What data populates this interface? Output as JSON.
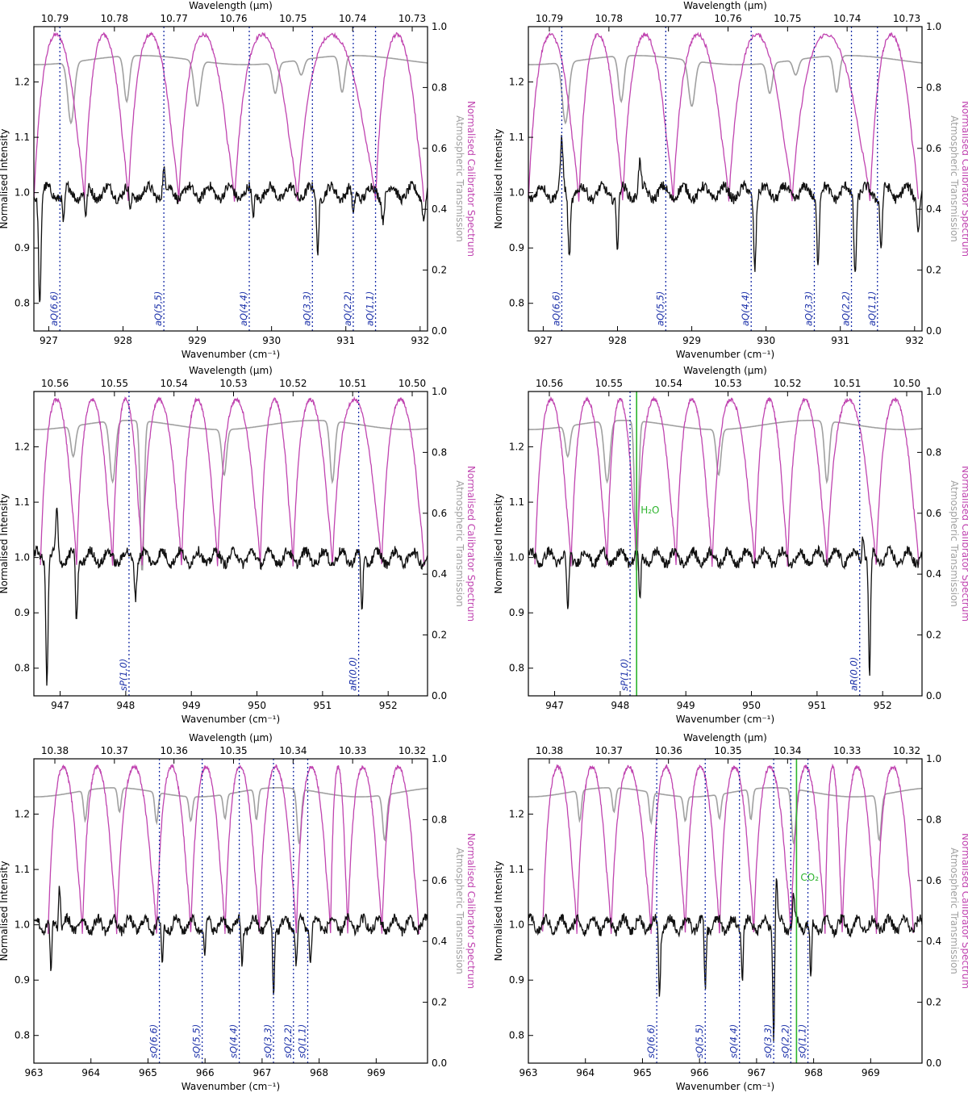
{
  "figure": {
    "type": "line",
    "axis_labels": {
      "x_bottom": "Wavenumber (cm⁻¹)",
      "x_top": "Wavelength (μm)",
      "y_left": "Normalised Intensity",
      "y_right_1": "Normalised Calibrator Spectrum",
      "y_right_2": "Atmospheric Transmission"
    },
    "colors": {
      "target": "#111111",
      "calibrator": "#c044b0",
      "atmosphere": "#a0a0a0",
      "line_marker": "#1a2fa8",
      "feature": "#2db42d"
    },
    "y_left": {
      "range": [
        0.75,
        1.3
      ],
      "ticks": [
        "0.8",
        "0.9",
        "1.0",
        "1.1",
        "1.2"
      ]
    },
    "y_right": {
      "range": [
        0.0,
        1.0
      ],
      "ticks": [
        "0.0",
        "0.2",
        "0.4",
        "0.6",
        "0.8",
        "1.0"
      ]
    }
  },
  "chart_data": [
    {
      "panel": "row1-left",
      "xlim": [
        926.8,
        932.1
      ],
      "x_ticks": [
        "927",
        "928",
        "929",
        "930",
        "931",
        "932"
      ],
      "wavelength_ticks": [
        "10.79",
        "10.78",
        "10.77",
        "10.76",
        "10.75",
        "10.74",
        "10.73"
      ],
      "lines": [
        {
          "label": "aQ(6,6)",
          "x": 927.15
        },
        {
          "label": "aQ(5,5)",
          "x": 928.55
        },
        {
          "label": "aQ(4,4)",
          "x": 929.7
        },
        {
          "label": "aQ(3,3)",
          "x": 930.55
        },
        {
          "label": "aQ(2,2)",
          "x": 931.1
        },
        {
          "label": "aQ(1,1)",
          "x": 931.4
        }
      ],
      "features": [],
      "atm_dips": [
        [
          927.3,
          0.2,
          0.12
        ],
        [
          928.05,
          0.15,
          0.1
        ],
        [
          929.0,
          0.15,
          0.12
        ],
        [
          930.05,
          0.1,
          0.1
        ],
        [
          930.4,
          0.05,
          0.1
        ],
        [
          930.95,
          0.12,
          0.1
        ]
      ],
      "cal_segments": [
        [
          926.8,
          927.48
        ],
        [
          927.48,
          928.07
        ],
        [
          928.07,
          928.75
        ],
        [
          928.75,
          929.5
        ],
        [
          929.5,
          930.35
        ],
        [
          930.35,
          931.4
        ],
        [
          931.4,
          932.05
        ]
      ],
      "target_spikes": [
        [
          926.88,
          -0.2
        ],
        [
          927.2,
          -0.06
        ],
        [
          927.5,
          -0.05
        ],
        [
          928.1,
          -0.04
        ],
        [
          928.55,
          0.04
        ],
        [
          929.75,
          -0.05
        ],
        [
          930.62,
          -0.1
        ],
        [
          931.1,
          -0.05
        ],
        [
          931.5,
          -0.04
        ],
        [
          932.05,
          -0.04
        ]
      ]
    },
    {
      "panel": "row1-right",
      "xlim": [
        926.8,
        932.1
      ],
      "x_ticks": [
        "927",
        "928",
        "929",
        "930",
        "931",
        "932"
      ],
      "wavelength_ticks": [
        "10.79",
        "10.78",
        "10.77",
        "10.76",
        "10.75",
        "10.74",
        "10.73"
      ],
      "lines": [
        {
          "label": "aQ(6,6)",
          "x": 927.25
        },
        {
          "label": "aQ(5,5)",
          "x": 928.65
        },
        {
          "label": "aQ(4,4)",
          "x": 929.8
        },
        {
          "label": "aQ(3,3)",
          "x": 930.65
        },
        {
          "label": "aQ(2,2)",
          "x": 931.15
        },
        {
          "label": "aQ(1,1)",
          "x": 931.5
        }
      ],
      "features": [],
      "atm_dips": [
        [
          927.3,
          0.2,
          0.12
        ],
        [
          928.05,
          0.15,
          0.1
        ],
        [
          929.0,
          0.15,
          0.12
        ],
        [
          930.05,
          0.1,
          0.1
        ],
        [
          930.4,
          0.05,
          0.1
        ],
        [
          930.95,
          0.12,
          0.1
        ]
      ],
      "cal_segments": [
        [
          926.8,
          927.48
        ],
        [
          927.48,
          928.07
        ],
        [
          928.07,
          928.75
        ],
        [
          928.75,
          929.5
        ],
        [
          929.5,
          930.35
        ],
        [
          930.35,
          931.4
        ],
        [
          931.4,
          932.05
        ]
      ],
      "target_spikes": [
        [
          927.25,
          0.09
        ],
        [
          927.35,
          -0.11
        ],
        [
          928.0,
          -0.1
        ],
        [
          928.3,
          0.05
        ],
        [
          929.85,
          -0.13
        ],
        [
          930.7,
          -0.12
        ],
        [
          931.2,
          -0.14
        ],
        [
          931.55,
          -0.1
        ],
        [
          932.05,
          -0.06
        ]
      ]
    },
    {
      "panel": "row2-left",
      "xlim": [
        946.6,
        952.6
      ],
      "x_ticks": [
        "947",
        "948",
        "949",
        "950",
        "951",
        "952"
      ],
      "wavelength_ticks": [
        "10.56",
        "10.55",
        "10.54",
        "10.53",
        "10.52",
        "10.51",
        "10.50"
      ],
      "lines": [
        {
          "label": "sP(1,0)",
          "x": 948.05
        },
        {
          "label": "aR(0,0)",
          "x": 951.55
        }
      ],
      "features": [],
      "atm_dips": [
        [
          947.2,
          0.1,
          0.1
        ],
        [
          947.8,
          0.2,
          0.12
        ],
        [
          948.25,
          0.5,
          0.08
        ],
        [
          949.5,
          0.15,
          0.1
        ],
        [
          951.15,
          0.2,
          0.1
        ]
      ],
      "cal_segments": [
        [
          946.7,
          947.25
        ],
        [
          947.25,
          947.8
        ],
        [
          947.8,
          948.25
        ],
        [
          948.25,
          948.85
        ],
        [
          948.85,
          949.4
        ],
        [
          949.4,
          950.05
        ],
        [
          950.05,
          950.55
        ],
        [
          950.55,
          951.15
        ],
        [
          951.15,
          951.9
        ],
        [
          951.9,
          952.55
        ]
      ],
      "target_spikes": [
        [
          946.8,
          -0.22
        ],
        [
          946.95,
          0.08
        ],
        [
          947.25,
          -0.12
        ],
        [
          948.15,
          -0.06
        ],
        [
          951.6,
          -0.1
        ]
      ]
    },
    {
      "panel": "row2-right",
      "xlim": [
        946.6,
        952.6
      ],
      "x_ticks": [
        "947",
        "948",
        "949",
        "950",
        "951",
        "952"
      ],
      "wavelength_ticks": [
        "10.56",
        "10.55",
        "10.54",
        "10.53",
        "10.52",
        "10.51",
        "10.50"
      ],
      "lines": [
        {
          "label": "sP(1,0)",
          "x": 948.15
        },
        {
          "label": "aR(0,0)",
          "x": 951.65
        }
      ],
      "features": [
        {
          "label": "H₂O",
          "x": 948.25
        }
      ],
      "atm_dips": [
        [
          947.2,
          0.1,
          0.1
        ],
        [
          947.8,
          0.2,
          0.12
        ],
        [
          948.25,
          0.5,
          0.08
        ],
        [
          949.5,
          0.15,
          0.1
        ],
        [
          951.15,
          0.2,
          0.1
        ]
      ],
      "cal_segments": [
        [
          946.7,
          947.25
        ],
        [
          947.25,
          947.8
        ],
        [
          947.8,
          948.25
        ],
        [
          948.25,
          948.85
        ],
        [
          948.85,
          949.4
        ],
        [
          949.4,
          950.05
        ],
        [
          950.05,
          950.55
        ],
        [
          950.55,
          951.15
        ],
        [
          951.15,
          951.9
        ],
        [
          951.9,
          952.55
        ]
      ],
      "target_spikes": [
        [
          947.2,
          -0.11
        ],
        [
          948.3,
          -0.08
        ],
        [
          951.7,
          0.05
        ],
        [
          951.8,
          -0.22
        ]
      ]
    },
    {
      "panel": "row3-left",
      "xlim": [
        963.0,
        969.9
      ],
      "x_ticks": [
        "963",
        "964",
        "965",
        "966",
        "967",
        "968",
        "969"
      ],
      "wavelength_ticks": [
        "10.38",
        "10.37",
        "10.36",
        "10.35",
        "10.34",
        "10.33",
        "10.32"
      ],
      "lines": [
        {
          "label": "sQ(6,6)",
          "x": 965.2
        },
        {
          "label": "sQ(5,5)",
          "x": 965.95
        },
        {
          "label": "sQ(4,4)",
          "x": 966.6
        },
        {
          "label": "sQ(3,3)",
          "x": 967.2
        },
        {
          "label": "sQ(2,2)",
          "x": 967.55
        },
        {
          "label": "sQ(1,1)",
          "x": 967.8
        }
      ],
      "features": [],
      "atm_dips": [
        [
          963.9,
          0.1,
          0.08
        ],
        [
          964.5,
          0.08,
          0.08
        ],
        [
          965.15,
          0.1,
          0.08
        ],
        [
          965.75,
          0.08,
          0.08
        ],
        [
          966.35,
          0.08,
          0.08
        ],
        [
          966.9,
          0.1,
          0.08
        ],
        [
          967.65,
          0.18,
          0.1
        ],
        [
          969.15,
          0.15,
          0.1
        ]
      ],
      "cal_segments": [
        [
          963.25,
          963.85
        ],
        [
          963.85,
          964.45
        ],
        [
          964.45,
          965.15
        ],
        [
          965.15,
          965.75
        ],
        [
          965.75,
          966.35
        ],
        [
          966.35,
          966.95
        ],
        [
          966.95,
          967.6
        ],
        [
          967.6,
          968.2
        ],
        [
          968.2,
          968.5
        ],
        [
          968.5,
          969.1
        ],
        [
          969.1,
          969.75
        ]
      ],
      "target_spikes": [
        [
          963.3,
          -0.1
        ],
        [
          963.45,
          0.08
        ],
        [
          965.25,
          -0.08
        ],
        [
          966.0,
          -0.06
        ],
        [
          966.65,
          -0.08
        ],
        [
          967.2,
          -0.13
        ],
        [
          967.6,
          -0.07
        ],
        [
          967.85,
          -0.06
        ]
      ]
    },
    {
      "panel": "row3-right",
      "xlim": [
        963.0,
        969.9
      ],
      "x_ticks": [
        "963",
        "964",
        "965",
        "966",
        "967",
        "968",
        "969"
      ],
      "wavelength_ticks": [
        "10.38",
        "10.37",
        "10.36",
        "10.35",
        "10.34",
        "10.33",
        "10.32"
      ],
      "lines": [
        {
          "label": "sQ(6,6)",
          "x": 965.25
        },
        {
          "label": "sQ(5,5)",
          "x": 966.1
        },
        {
          "label": "sQ(4,4)",
          "x": 966.7
        },
        {
          "label": "sQ(3,3)",
          "x": 967.3
        },
        {
          "label": "sQ(2,2)",
          "x": 967.6
        },
        {
          "label": "sQ(1,1)",
          "x": 967.9
        }
      ],
      "features": [
        {
          "label": "CO₂",
          "x": 967.7
        }
      ],
      "atm_dips": [
        [
          963.9,
          0.1,
          0.08
        ],
        [
          964.5,
          0.08,
          0.08
        ],
        [
          965.15,
          0.1,
          0.08
        ],
        [
          965.75,
          0.08,
          0.08
        ],
        [
          966.35,
          0.08,
          0.08
        ],
        [
          966.9,
          0.1,
          0.08
        ],
        [
          967.65,
          0.18,
          0.1
        ],
        [
          969.15,
          0.15,
          0.1
        ]
      ],
      "cal_segments": [
        [
          963.25,
          963.85
        ],
        [
          963.85,
          964.45
        ],
        [
          964.45,
          965.15
        ],
        [
          965.15,
          965.75
        ],
        [
          965.75,
          966.35
        ],
        [
          966.35,
          966.95
        ],
        [
          966.95,
          967.6
        ],
        [
          967.6,
          968.2
        ],
        [
          968.2,
          968.5
        ],
        [
          968.5,
          969.1
        ],
        [
          969.1,
          969.75
        ]
      ],
      "target_spikes": [
        [
          965.3,
          -0.13
        ],
        [
          966.1,
          -0.12
        ],
        [
          966.75,
          -0.09
        ],
        [
          967.3,
          -0.2
        ],
        [
          967.35,
          0.08
        ],
        [
          967.65,
          0.05
        ],
        [
          967.95,
          -0.1
        ]
      ]
    }
  ]
}
